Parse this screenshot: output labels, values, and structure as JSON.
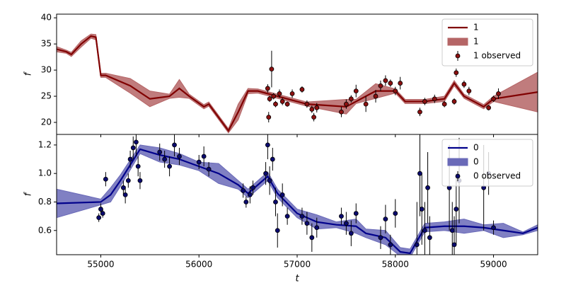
{
  "chart_data": [
    {
      "type": "line",
      "ylabel": "f",
      "legend": "upper right",
      "ylim": [
        17.7,
        40.7
      ],
      "yticks": [
        20,
        25,
        30,
        35,
        40
      ],
      "x": [
        54550,
        54650,
        54700,
        54800,
        54900,
        54950,
        55000,
        55050,
        55300,
        55500,
        55700,
        55800,
        55900,
        56050,
        56100,
        56300,
        56400,
        56500,
        56600,
        56800,
        57000,
        57100,
        57500,
        57600,
        57800,
        58000,
        58100,
        58300,
        58500,
        58600,
        58700,
        58900,
        59000,
        59450
      ],
      "series": [
        {
          "kind": "line",
          "name": "1",
          "color": "#800000",
          "values": [
            34,
            33.5,
            33,
            35,
            36.5,
            36.3,
            29,
            29,
            27,
            24.5,
            25,
            26.5,
            25,
            23,
            23.5,
            18.4,
            22,
            26,
            26,
            25,
            24,
            23.5,
            23,
            24,
            26,
            26,
            24,
            24,
            24.5,
            27.5,
            25,
            23,
            24.5,
            25.8
          ]
        },
        {
          "kind": "band",
          "name": "1",
          "color": "#b56566",
          "lower": [
            33.5,
            33.2,
            32.6,
            34.4,
            36.1,
            35.8,
            28.6,
            28.6,
            25.6,
            23,
            24.6,
            24.8,
            24.6,
            22.6,
            23.1,
            18,
            20.5,
            25.5,
            25.6,
            24.6,
            23.6,
            23.1,
            21.6,
            23.6,
            24.6,
            25.6,
            23.6,
            23.6,
            24,
            27,
            24.6,
            22.6,
            24,
            22
          ]
        },
        {
          "kind": "band_upper",
          "name": "1",
          "color": "#b56566",
          "upper": [
            34.5,
            33.8,
            33.4,
            35.6,
            36.9,
            36.8,
            29.4,
            29.4,
            28.4,
            26,
            25.4,
            28.2,
            25.4,
            23.4,
            23.9,
            18.8,
            23.5,
            26.5,
            26.4,
            25.4,
            24.4,
            23.9,
            24.4,
            24.4,
            27.4,
            26.4,
            24.4,
            24.4,
            25,
            28,
            25.4,
            23.4,
            25,
            29.6
          ]
        },
        {
          "kind": "observed",
          "name": "1 observed",
          "color": "#8b1010",
          "x": [
            56700,
            56710,
            56720,
            56740,
            56760,
            56780,
            56820,
            56850,
            56900,
            56950,
            57050,
            57100,
            57150,
            57170,
            57200,
            57450,
            57500,
            57550,
            57600,
            57700,
            57800,
            57850,
            57900,
            57950,
            58000,
            58050,
            58250,
            58300,
            58400,
            58500,
            58600,
            58620,
            58700,
            58750,
            58950,
            59000,
            59050
          ],
          "values": [
            26.5,
            21,
            24.5,
            30.2,
            25,
            23.5,
            25.5,
            24,
            23.5,
            25.5,
            26.3,
            23.5,
            22.5,
            21,
            22.8,
            22,
            23.5,
            24.5,
            26,
            23.5,
            25,
            27,
            28,
            27.5,
            26,
            27.5,
            22,
            24,
            24.5,
            23.5,
            24,
            29.5,
            27.3,
            26,
            22.8,
            24.5,
            25.5
          ],
          "errors": [
            0.8,
            1,
            0.6,
            3.5,
            0.6,
            0.6,
            0.8,
            0.7,
            0.5,
            0.8,
            0.6,
            0.7,
            0.7,
            0.8,
            0.9,
            1,
            0.9,
            0.7,
            1.2,
            1.5,
            1.2,
            1,
            1,
            0.7,
            0.8,
            1.2,
            0.8,
            0.7,
            0.8,
            0.6,
            0.6,
            0.8,
            0.7,
            0.8,
            0.5,
            0.6,
            1
          ]
        }
      ]
    },
    {
      "type": "line",
      "ylabel": "f",
      "xlabel": "t",
      "legend": "upper right",
      "xlim": [
        54550,
        59450
      ],
      "xticks": [
        55000,
        56000,
        57000,
        58000,
        59000
      ],
      "ylim": [
        0.43,
        1.274
      ],
      "yticks": [
        0.6,
        0.8,
        {
          "value": 1,
          "label": "1.0"
        },
        1.2
      ],
      "x": [
        54550,
        55000,
        55100,
        55200,
        55400,
        55600,
        55800,
        56000,
        56200,
        56400,
        56500,
        56700,
        56800,
        57000,
        57200,
        57400,
        57600,
        57700,
        57900,
        58050,
        58150,
        58300,
        58500,
        58700,
        58900,
        59100,
        59300,
        59450
      ],
      "series": [
        {
          "kind": "line",
          "name": "0",
          "color": "#00008b",
          "values": [
            0.79,
            0.8,
            0.85,
            0.95,
            1.17,
            1.13,
            1.1,
            1.05,
            1,
            0.92,
            0.86,
            0.98,
            0.86,
            0.72,
            0.66,
            0.64,
            0.63,
            0.58,
            0.55,
            0.45,
            0.44,
            0.62,
            0.63,
            0.63,
            0.62,
            0.6,
            0.58,
            0.62
          ]
        },
        {
          "kind": "band",
          "name": "0",
          "color": "#6a6ab8",
          "lower": [
            0.69,
            0.78,
            0.8,
            0.91,
            1.14,
            1.08,
            1.06,
            1.02,
            0.93,
            0.89,
            0.83,
            0.95,
            0.83,
            0.69,
            0.61,
            0.62,
            0.58,
            0.55,
            0.5,
            0.42,
            0.41,
            0.59,
            0.6,
            0.58,
            0.6,
            0.55,
            0.57,
            0.6
          ]
        },
        {
          "kind": "band_upper",
          "name": "0",
          "color": "#6a6ab8",
          "upper": [
            0.89,
            0.82,
            0.9,
            0.99,
            1.2,
            1.18,
            1.14,
            1.08,
            1.07,
            0.95,
            0.89,
            1.01,
            0.89,
            0.75,
            0.71,
            0.66,
            0.68,
            0.61,
            0.6,
            0.48,
            0.47,
            0.65,
            0.66,
            0.68,
            0.64,
            0.65,
            0.59,
            0.64
          ]
        },
        {
          "kind": "observed",
          "name": "0 observed",
          "color": "#0a0a6e",
          "x": [
            54980,
            55000,
            55020,
            55050,
            55230,
            55250,
            55280,
            55300,
            55330,
            55360,
            55380,
            55400,
            55600,
            55650,
            55700,
            55750,
            55800,
            56000,
            56050,
            56100,
            56450,
            56480,
            56520,
            56550,
            56680,
            56700,
            56720,
            56750,
            56780,
            56800,
            56850,
            56900,
            57050,
            57100,
            57150,
            57200,
            57450,
            57500,
            57550,
            57600,
            57850,
            57900,
            57950,
            58000,
            58220,
            58250,
            58270,
            58300,
            58330,
            58350,
            58550,
            58580,
            58600,
            58620,
            58650,
            58900,
            58950,
            59000
          ],
          "values": [
            0.69,
            0.75,
            0.72,
            0.96,
            0.9,
            0.85,
            0.95,
            1.1,
            1.18,
            1.22,
            1.05,
            0.95,
            1.15,
            1.1,
            1.05,
            1.2,
            1.12,
            1.08,
            1.12,
            1.03,
            0.88,
            0.8,
            0.85,
            0.9,
            1,
            1.2,
            0.95,
            1.1,
            0.8,
            0.6,
            0.85,
            0.7,
            0.7,
            0.65,
            0.55,
            0.62,
            0.7,
            0.65,
            0.58,
            0.72,
            0.55,
            0.68,
            0.5,
            0.72,
            0.5,
            1,
            0.75,
            0.6,
            0.9,
            0.55,
            0.9,
            0.6,
            0.5,
            0.75,
            0.95,
            0.9,
            1,
            0.62
          ],
          "errors": [
            0.03,
            0.04,
            0.03,
            0.05,
            0.05,
            0.06,
            0.05,
            0.06,
            0.08,
            0.1,
            0.07,
            0.06,
            0.06,
            0.06,
            0.07,
            0.08,
            0.06,
            0.05,
            0.07,
            0.05,
            0.05,
            0.04,
            0.06,
            0.05,
            0.08,
            0.1,
            0.1,
            0.08,
            0.1,
            0.12,
            0.08,
            0.06,
            0.06,
            0.08,
            0.1,
            0.07,
            0.06,
            0.08,
            0.09,
            0.07,
            0.08,
            0.1,
            0.07,
            0.1,
            0.3,
            0.3,
            0.25,
            0.2,
            0.25,
            0.15,
            0.3,
            0.2,
            0.2,
            0.25,
            0.3,
            0.3,
            0.15,
            0.05
          ]
        }
      ]
    }
  ]
}
